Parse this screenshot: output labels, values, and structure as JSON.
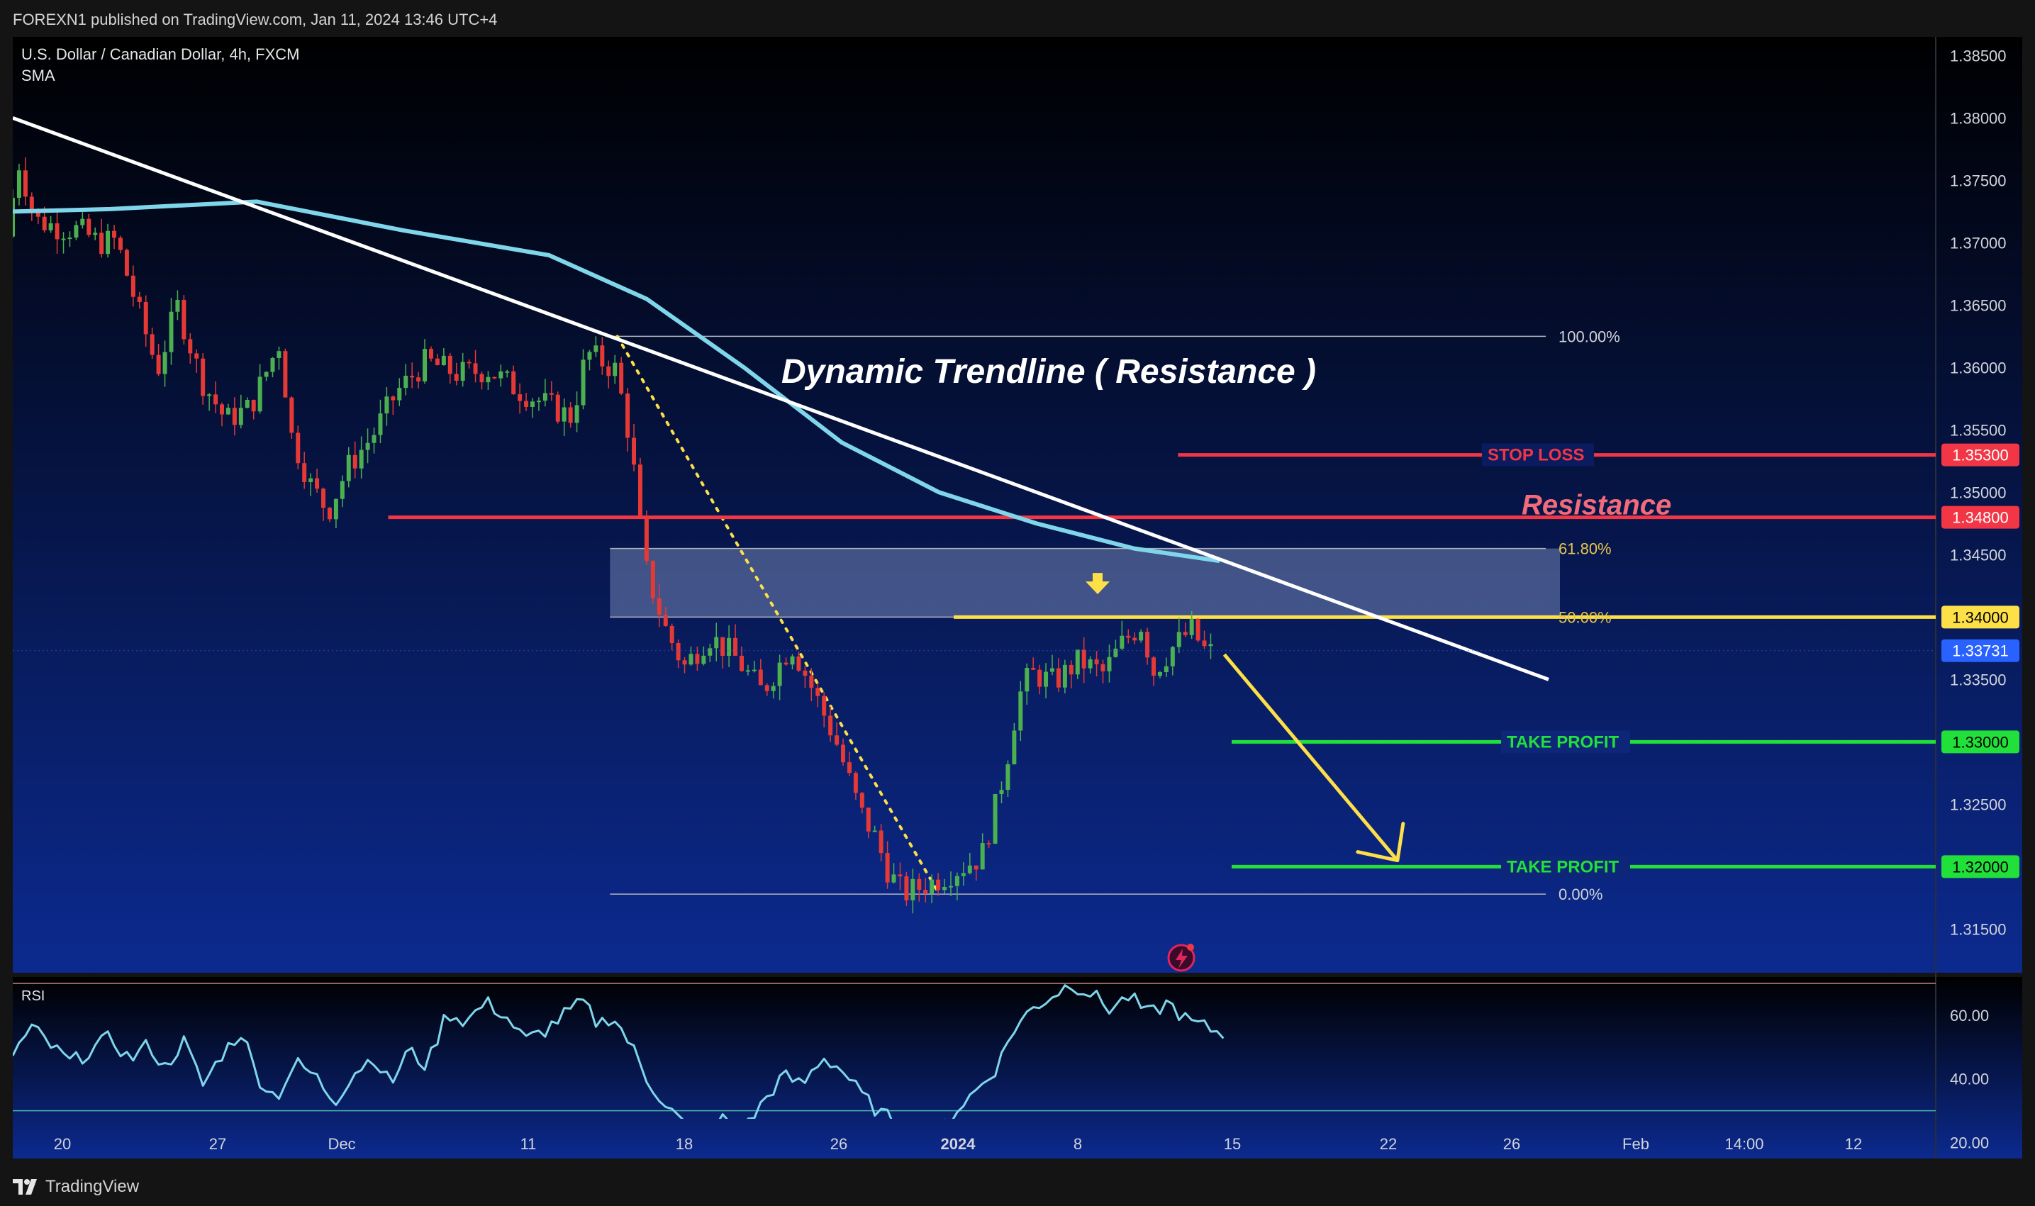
{
  "header": {
    "published": "FOREXN1 published on TradingView.com, Jan 11, 2024 13:46 UTC+4"
  },
  "footer": {
    "brand": "TradingView"
  },
  "chart_data": {
    "type": "candlestick",
    "symbol_line": "U.S. Dollar / Canadian Dollar, 4h, FXCM",
    "indicator": "SMA",
    "title": "Dynamic Trendline ( Resistance )",
    "ylim": [
      1.3115,
      1.3865
    ],
    "y_ticks": [
      "1.38500",
      "1.38000",
      "1.37500",
      "1.37000",
      "1.36500",
      "1.36000",
      "1.35500",
      "1.35000",
      "1.34500",
      "1.33500",
      "1.32500",
      "1.31500"
    ],
    "x_ticks": [
      {
        "label": "20",
        "bold": false
      },
      {
        "label": "27",
        "bold": false
      },
      {
        "label": "Dec",
        "bold": false
      },
      {
        "label": "11",
        "bold": false
      },
      {
        "label": "18",
        "bold": false
      },
      {
        "label": "26",
        "bold": false
      },
      {
        "label": "2024",
        "bold": true
      },
      {
        "label": "8",
        "bold": false
      },
      {
        "label": "15",
        "bold": false
      },
      {
        "label": "22",
        "bold": false
      },
      {
        "label": "26",
        "bold": false
      },
      {
        "label": "Feb",
        "bold": false
      },
      {
        "label": "14:00",
        "bold": false
      },
      {
        "label": "12",
        "bold": false
      }
    ],
    "price_path": [
      [
        0,
        1.3705
      ],
      [
        5,
        1.3765
      ],
      [
        12,
        1.3718
      ],
      [
        22,
        1.3712
      ],
      [
        30,
        1.371
      ],
      [
        38,
        1.37
      ],
      [
        45,
        1.3702
      ],
      [
        55,
        1.364
      ],
      [
        62,
        1.3598
      ],
      [
        70,
        1.365
      ],
      [
        80,
        1.359
      ],
      [
        90,
        1.3558
      ],
      [
        100,
        1.3568
      ],
      [
        112,
        1.362
      ],
      [
        117,
        1.3545
      ],
      [
        125,
        1.3505
      ],
      [
        132,
        1.3485
      ],
      [
        140,
        1.352
      ],
      [
        150,
        1.3545
      ],
      [
        160,
        1.358
      ],
      [
        172,
        1.3605
      ],
      [
        185,
        1.3595
      ],
      [
        198,
        1.3598
      ],
      [
        210,
        1.3582
      ],
      [
        222,
        1.357
      ],
      [
        232,
        1.356
      ],
      [
        238,
        1.3612
      ],
      [
        250,
        1.3598
      ],
      [
        256,
        1.354
      ],
      [
        262,
        1.344
      ],
      [
        270,
        1.3392
      ],
      [
        278,
        1.336
      ],
      [
        288,
        1.3385
      ],
      [
        298,
        1.337
      ],
      [
        310,
        1.334
      ],
      [
        322,
        1.3378
      ],
      [
        330,
        1.3345
      ],
      [
        340,
        1.3302
      ],
      [
        350,
        1.3245
      ],
      [
        356,
        1.3225
      ],
      [
        362,
        1.3195
      ],
      [
        368,
        1.3178
      ],
      [
        380,
        1.3188
      ],
      [
        392,
        1.32
      ],
      [
        400,
        1.3208
      ],
      [
        406,
        1.325
      ],
      [
        410,
        1.3282
      ],
      [
        415,
        1.3335
      ],
      [
        420,
        1.3355
      ],
      [
        430,
        1.3348
      ],
      [
        440,
        1.3365
      ],
      [
        450,
        1.3355
      ],
      [
        458,
        1.338
      ],
      [
        466,
        1.3395
      ],
      [
        470,
        1.3355
      ],
      [
        478,
        1.3375
      ],
      [
        486,
        1.339
      ],
      [
        492,
        1.3372
      ]
    ],
    "sma_path": [
      [
        0,
        1.3725
      ],
      [
        40,
        1.3727
      ],
      [
        100,
        1.3733
      ],
      [
        160,
        1.371
      ],
      [
        220,
        1.369
      ],
      [
        260,
        1.3655
      ],
      [
        300,
        1.36
      ],
      [
        340,
        1.354
      ],
      [
        380,
        1.35
      ],
      [
        420,
        1.3475
      ],
      [
        460,
        1.3455
      ],
      [
        495,
        1.3445
      ]
    ],
    "trendline": {
      "x1": 0,
      "y1": 1.38,
      "x2": 630,
      "y2": 1.335
    },
    "fib": {
      "high": 1.3625,
      "low": 1.3178,
      "levels": [
        {
          "label": "100.00%",
          "value": 1.3625
        },
        {
          "label": "61.80%",
          "value": 1.3455
        },
        {
          "label": "50.00%",
          "value": 1.34
        },
        {
          "label": "0.00%",
          "value": 1.3178
        }
      ],
      "zone": [
        1.34,
        1.3455
      ]
    },
    "fib_dotted": {
      "x1": 248,
      "y1": 1.3625,
      "x2": 380,
      "y2": 1.3178
    },
    "levels": [
      {
        "label": "STOP LOSS",
        "value": 1.353,
        "price_label": "1.35300",
        "color": "#f23645"
      },
      {
        "label": "Resistance",
        "value": 1.348,
        "price_label": "1.34800",
        "color": "#f23645"
      },
      {
        "label": "",
        "value": 1.34,
        "price_label": "1.34000",
        "color": "#fde047"
      },
      {
        "label": "TAKE PROFIT",
        "value": 1.33,
        "price_label": "1.33000",
        "color": "#22e03a"
      },
      {
        "label": "TAKE PROFIT",
        "value": 1.32,
        "price_label": "1.32000",
        "color": "#22e03a"
      }
    ],
    "last_price": {
      "value": 1.33731,
      "label": "1.33731"
    },
    "projection": {
      "from": [
        497,
        1.337
      ],
      "to": [
        568,
        1.3205
      ]
    },
    "rsi": {
      "label": "RSI",
      "ylim": [
        15,
        72
      ],
      "y_ticks": [
        "60.00",
        "40.00",
        "20.00"
      ],
      "upper_band": 70,
      "lower_band": 30,
      "path": [
        [
          0,
          48
        ],
        [
          8,
          56
        ],
        [
          16,
          50
        ],
        [
          24,
          45
        ],
        [
          32,
          49
        ],
        [
          40,
          53
        ],
        [
          48,
          46
        ],
        [
          56,
          51
        ],
        [
          62,
          43
        ],
        [
          70,
          52
        ],
        [
          78,
          38
        ],
        [
          86,
          48
        ],
        [
          94,
          55
        ],
        [
          100,
          41
        ],
        [
          108,
          34
        ],
        [
          116,
          45
        ],
        [
          124,
          41
        ],
        [
          132,
          33
        ],
        [
          140,
          42
        ],
        [
          148,
          47
        ],
        [
          155,
          38
        ],
        [
          162,
          49
        ],
        [
          170,
          44
        ],
        [
          178,
          61
        ],
        [
          186,
          58
        ],
        [
          194,
          64
        ],
        [
          202,
          60
        ],
        [
          210,
          52
        ],
        [
          218,
          55
        ],
        [
          226,
          60
        ],
        [
          234,
          64
        ],
        [
          240,
          57
        ],
        [
          246,
          60
        ],
        [
          254,
          50
        ],
        [
          260,
          40
        ],
        [
          268,
          32
        ],
        [
          276,
          25
        ],
        [
          284,
          22
        ],
        [
          292,
          28
        ],
        [
          300,
          24
        ],
        [
          308,
          33
        ],
        [
          316,
          41
        ],
        [
          324,
          38
        ],
        [
          332,
          47
        ],
        [
          340,
          43
        ],
        [
          348,
          35
        ],
        [
          356,
          29
        ],
        [
          364,
          26
        ],
        [
          372,
          23
        ],
        [
          380,
          24
        ],
        [
          388,
          31
        ],
        [
          396,
          37
        ],
        [
          404,
          44
        ],
        [
          410,
          55
        ],
        [
          418,
          62
        ],
        [
          426,
          66
        ],
        [
          434,
          70
        ],
        [
          442,
          67
        ],
        [
          450,
          62
        ],
        [
          458,
          66
        ],
        [
          466,
          60
        ],
        [
          474,
          64
        ],
        [
          482,
          58
        ],
        [
          490,
          56
        ],
        [
          497,
          54
        ]
      ]
    }
  }
}
